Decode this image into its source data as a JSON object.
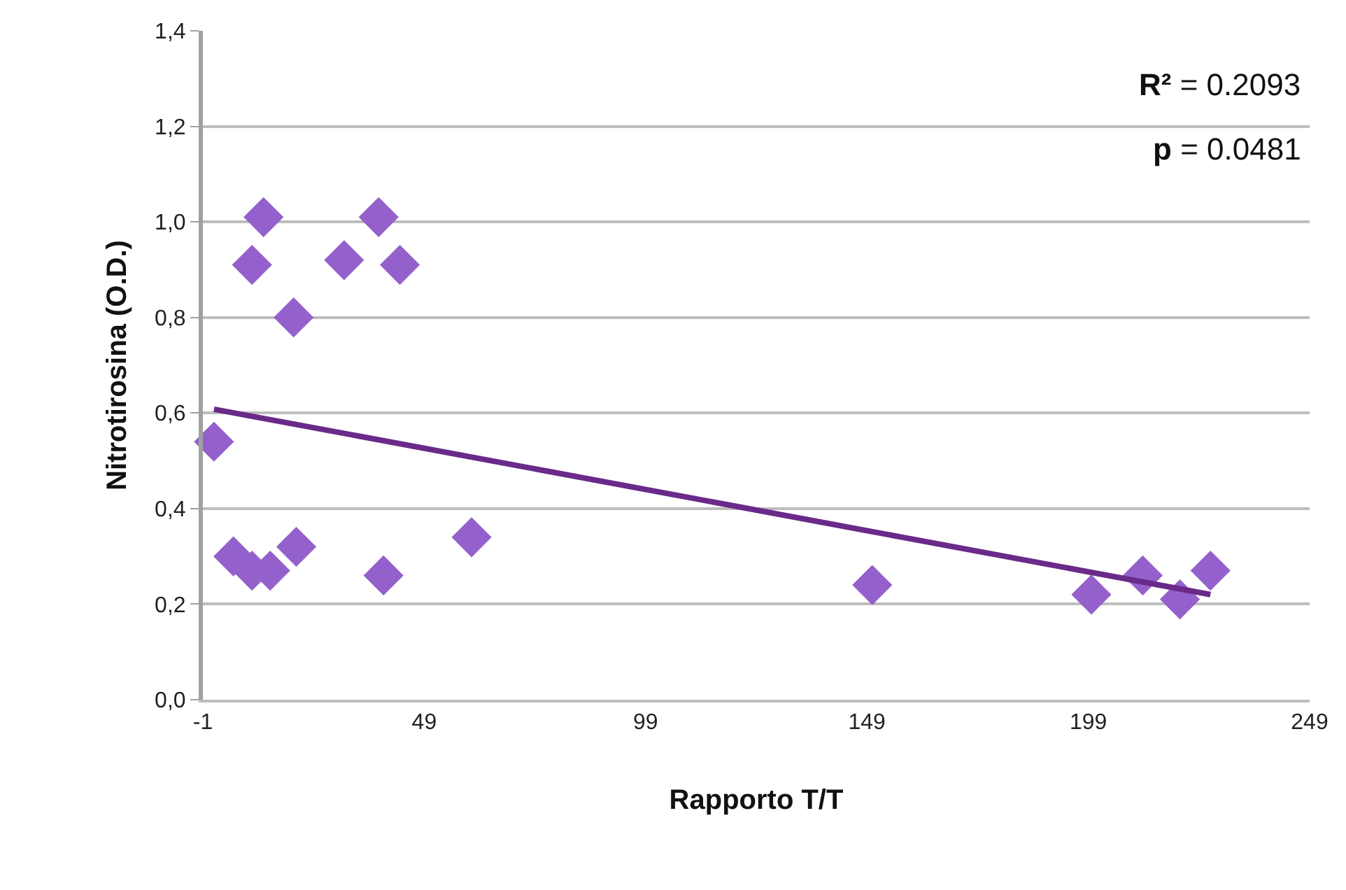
{
  "chart_data": {
    "type": "scatter",
    "xlabel": "Rapporto T/T",
    "ylabel": "Nitrotirosina (O.D.)",
    "annotations": [
      "R² = 0.2093",
      "p = 0.0481"
    ],
    "series": [
      {
        "color": "#9461cc",
        "marker": "diamond",
        "x": [
          1.5,
          5.9,
          10.1,
          14.2,
          20.1,
          39.8,
          59.7,
          12.7,
          10.1,
          19.5,
          30.9,
          38.7,
          43.5,
          150.2,
          199.7,
          211.3,
          219.7,
          226.6
        ],
        "values": [
          0.54,
          0.3,
          0.27,
          0.27,
          0.32,
          0.26,
          0.34,
          1.01,
          0.91,
          0.8,
          0.92,
          1.01,
          0.91,
          0.24,
          0.22,
          0.26,
          0.21,
          0.27
        ]
      },
      {
        "type": "line",
        "color": "#6a2a8a",
        "marker": "none",
        "line_style": "solid",
        "x": [
          1.5,
          226.6
        ],
        "values": [
          0.608,
          0.22
        ]
      }
    ],
    "xlim": [
      -1,
      249
    ],
    "xticks": [
      -1,
      49,
      99,
      149,
      199,
      249
    ],
    "ylim": [
      0,
      1.4
    ],
    "yticks": [
      {
        "value": 0,
        "label": "0,0"
      },
      {
        "value": 0.2,
        "label": "0,2"
      },
      {
        "value": 0.4,
        "label": "0,4"
      },
      {
        "value": 0.6,
        "label": "0,6"
      },
      {
        "value": 0.8,
        "label": "0,8"
      },
      {
        "value": 1.0,
        "label": "1,0"
      },
      {
        "value": 1.2,
        "label": "1,2"
      },
      {
        "value": 1.4,
        "label": "1,4"
      }
    ],
    "grid": "y"
  }
}
